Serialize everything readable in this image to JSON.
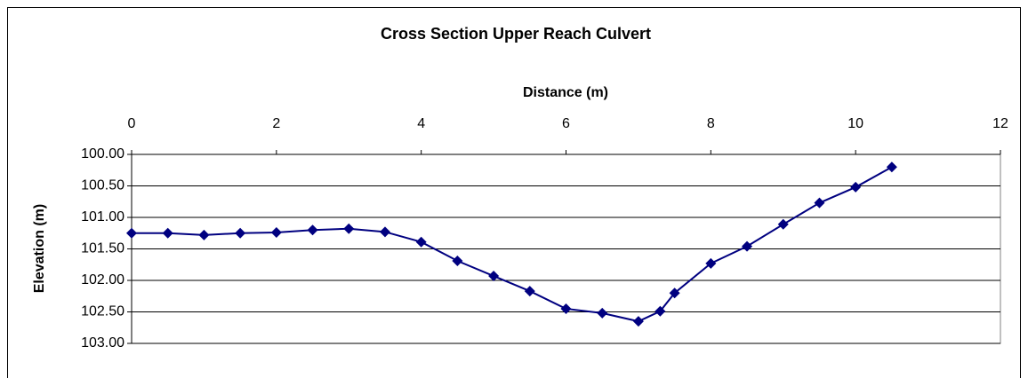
{
  "chart_data": {
    "type": "line",
    "title": "Cross Section Upper Reach Culvert",
    "x_label": "Distance (m)",
    "y_label": "Elevation (m)",
    "x": [
      0,
      0.5,
      1,
      1.5,
      2,
      2.5,
      3,
      3.5,
      4,
      4.5,
      5,
      5.5,
      6,
      6.5,
      7,
      7.3,
      7.5,
      8,
      8.5,
      9,
      9.5,
      10,
      10.5
    ],
    "values": [
      101.25,
      101.25,
      101.28,
      101.25,
      101.24,
      101.2,
      101.18,
      101.23,
      101.39,
      101.69,
      101.93,
      102.17,
      102.45,
      102.52,
      102.65,
      102.49,
      102.2,
      101.73,
      101.46,
      101.11,
      100.77,
      100.52,
      100.2
    ],
    "color": "#000080",
    "xlim": [
      0,
      12
    ],
    "xticks": [
      0,
      2,
      4,
      6,
      8,
      10,
      12
    ],
    "ylim": [
      100,
      103
    ],
    "y_inverted": true,
    "yticks": [
      {
        "value": 100,
        "label": "100.00"
      },
      {
        "value": 100.5,
        "label": "100.50"
      },
      {
        "value": 101,
        "label": "101.00"
      },
      {
        "value": 101.5,
        "label": "101.50"
      },
      {
        "value": 102,
        "label": "102.00"
      },
      {
        "value": 102.5,
        "label": "102.50"
      },
      {
        "value": 103,
        "label": "103.00"
      }
    ],
    "grid": true
  }
}
